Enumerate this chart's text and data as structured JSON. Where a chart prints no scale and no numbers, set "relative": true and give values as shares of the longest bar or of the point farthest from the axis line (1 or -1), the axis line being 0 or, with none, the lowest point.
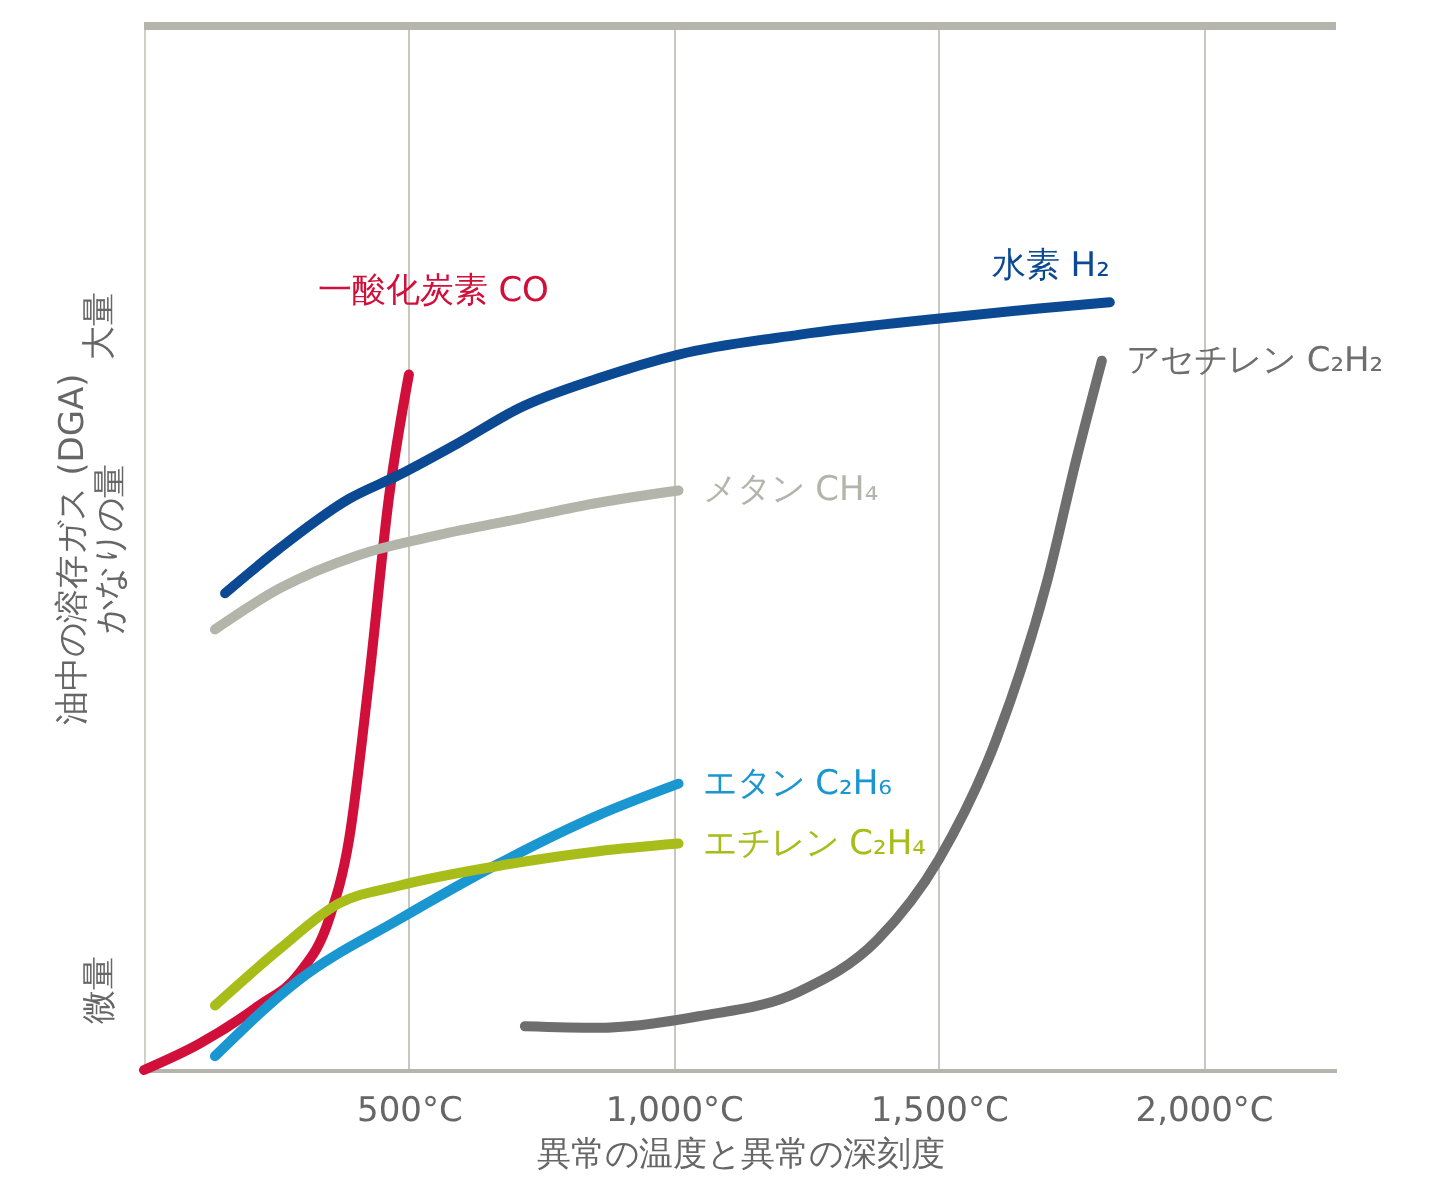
{
  "chart_data": {
    "type": "line",
    "relative": true,
    "xlabel": "異常の温度と異常の深刻度",
    "ylabel": "油中の溶存ガス (DGA)\nかなりの量",
    "annotations": [
      "大量",
      "微量"
    ],
    "xlim": [
      0,
      2250
    ],
    "xticks": [
      {
        "value": 500,
        "label": "500°C"
      },
      {
        "value": 1000,
        "label": "1,000°C"
      },
      {
        "value": 1500,
        "label": "1,500°C"
      },
      {
        "value": 2000,
        "label": "2,000°C"
      }
    ],
    "grid": "x",
    "marker": "none",
    "line_style": "solid",
    "series": [
      {
        "name": "一酸化炭素 CO",
        "color": "#d0103a",
        "x": [
          0,
          104,
          217,
          292,
          349,
          387,
          425,
          462,
          500
        ],
        "values": [
          0,
          0.034,
          0.084,
          0.125,
          0.196,
          0.3,
          0.51,
          0.744,
          0.906
        ]
      },
      {
        "name": "水素 H₂",
        "color": "#0b4a92",
        "x": [
          153,
          255,
          387,
          481,
          594,
          708,
          858,
          1009,
          1238,
          1502,
          1689,
          1823
        ],
        "values": [
          0.621,
          0.679,
          0.744,
          0.775,
          0.817,
          0.862,
          0.901,
          0.932,
          0.958,
          0.979,
          0.992,
          1.0
        ]
      },
      {
        "name": "メタン CH₄",
        "color": "#b3b5ab",
        "x": [
          134,
          255,
          406,
          557,
          708,
          858,
          1009
        ],
        "values": [
          0.574,
          0.627,
          0.671,
          0.697,
          0.718,
          0.739,
          0.755
        ]
      },
      {
        "name": "エタン C₂H₆",
        "color": "#1a96d0",
        "x": [
          134,
          292,
          481,
          670,
          858,
          1009
        ],
        "values": [
          0.018,
          0.117,
          0.196,
          0.269,
          0.332,
          0.373
        ]
      },
      {
        "name": "エチレン C₂H₄",
        "color": "#a8bc1a",
        "x": [
          134,
          255,
          368,
          481,
          670,
          858,
          1009
        ],
        "values": [
          0.084,
          0.157,
          0.217,
          0.24,
          0.266,
          0.285,
          0.295
        ]
      },
      {
        "name": "アセチレン C₂H₂",
        "color": "#6e6e6e",
        "x": [
          719,
          858,
          1047,
          1236,
          1385,
          1500,
          1609,
          1706,
          1760,
          1808
        ],
        "values": [
          0.057,
          0.055,
          0.07,
          0.102,
          0.17,
          0.274,
          0.431,
          0.64,
          0.796,
          0.924
        ]
      }
    ]
  }
}
